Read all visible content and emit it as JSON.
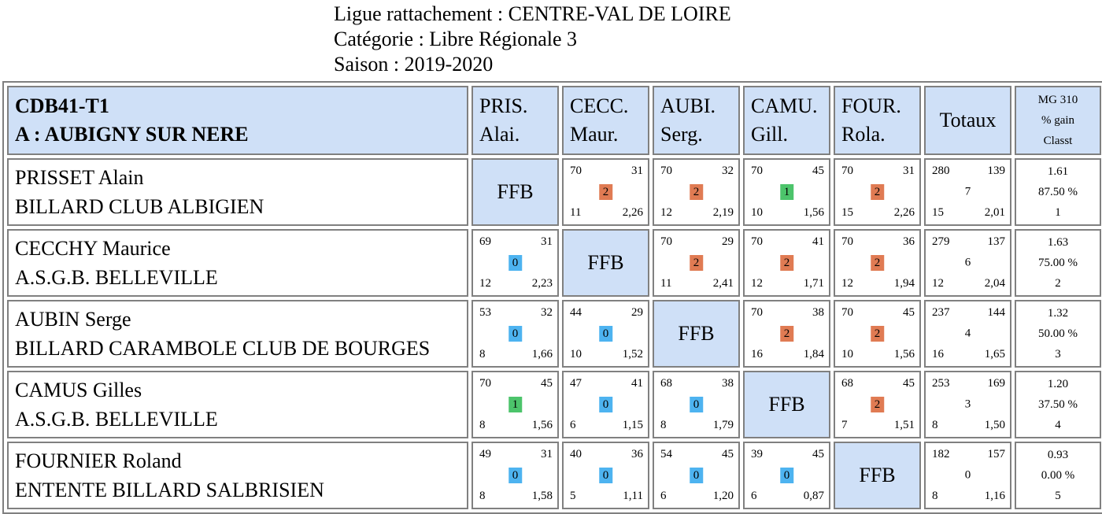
{
  "header": {
    "ligue": "Ligue rattachement : CENTRE-VAL DE LOIRE",
    "categorie": "Catégorie : Libre Régionale 3",
    "saison": "Saison : 2019-2020"
  },
  "table": {
    "title_line1": "CDB41-T1",
    "title_line2": "A : AUBIGNY SUR NERE",
    "col_heads": [
      {
        "l1": "PRIS.",
        "l2": "Alai."
      },
      {
        "l1": "CECC.",
        "l2": "Maur."
      },
      {
        "l1": "AUBI.",
        "l2": "Serg."
      },
      {
        "l1": "CAMU.",
        "l2": "Gill."
      },
      {
        "l1": "FOUR.",
        "l2": "Rola."
      }
    ],
    "totaux_label": "Totaux",
    "mg_head": {
      "l1": "MG 310",
      "l2": "% gain",
      "l3": "Classt"
    },
    "ffb_label": "FFB",
    "rows": [
      {
        "name": "PRISSET Alain",
        "club": "BILLARD CLUB ALBIGIEN",
        "cells": [
          null,
          {
            "tl": "70",
            "tr": "31",
            "pts": "2",
            "bl": "11",
            "br": "2,26"
          },
          {
            "tl": "70",
            "tr": "32",
            "pts": "2",
            "bl": "12",
            "br": "2,19"
          },
          {
            "tl": "70",
            "tr": "45",
            "pts": "1",
            "bl": "10",
            "br": "1,56"
          },
          {
            "tl": "70",
            "tr": "31",
            "pts": "2",
            "bl": "15",
            "br": "2,26"
          }
        ],
        "totals": {
          "tl": "280",
          "tr": "139",
          "mid": "7",
          "bl": "15",
          "br": "2,01"
        },
        "mg": {
          "avg": "1.61",
          "pct": "87.50 %",
          "rank": "1"
        }
      },
      {
        "name": "CECCHY Maurice",
        "club": "A.S.G.B. BELLEVILLE",
        "cells": [
          {
            "tl": "69",
            "tr": "31",
            "pts": "0",
            "bl": "12",
            "br": "2,23"
          },
          null,
          {
            "tl": "70",
            "tr": "29",
            "pts": "2",
            "bl": "11",
            "br": "2,41"
          },
          {
            "tl": "70",
            "tr": "41",
            "pts": "2",
            "bl": "12",
            "br": "1,71"
          },
          {
            "tl": "70",
            "tr": "36",
            "pts": "2",
            "bl": "12",
            "br": "1,94"
          }
        ],
        "totals": {
          "tl": "279",
          "tr": "137",
          "mid": "6",
          "bl": "12",
          "br": "2,04"
        },
        "mg": {
          "avg": "1.63",
          "pct": "75.00 %",
          "rank": "2"
        }
      },
      {
        "name": "AUBIN Serge",
        "club": "BILLARD CARAMBOLE CLUB DE BOURGES",
        "cells": [
          {
            "tl": "53",
            "tr": "32",
            "pts": "0",
            "bl": "8",
            "br": "1,66"
          },
          {
            "tl": "44",
            "tr": "29",
            "pts": "0",
            "bl": "10",
            "br": "1,52"
          },
          null,
          {
            "tl": "70",
            "tr": "38",
            "pts": "2",
            "bl": "16",
            "br": "1,84"
          },
          {
            "tl": "70",
            "tr": "45",
            "pts": "2",
            "bl": "10",
            "br": "1,56"
          }
        ],
        "totals": {
          "tl": "237",
          "tr": "144",
          "mid": "4",
          "bl": "16",
          "br": "1,65"
        },
        "mg": {
          "avg": "1.32",
          "pct": "50.00 %",
          "rank": "3"
        }
      },
      {
        "name": "CAMUS Gilles",
        "club": "A.S.G.B. BELLEVILLE",
        "cells": [
          {
            "tl": "70",
            "tr": "45",
            "pts": "1",
            "bl": "8",
            "br": "1,56"
          },
          {
            "tl": "47",
            "tr": "41",
            "pts": "0",
            "bl": "6",
            "br": "1,15"
          },
          {
            "tl": "68",
            "tr": "38",
            "pts": "0",
            "bl": "8",
            "br": "1,79"
          },
          null,
          {
            "tl": "68",
            "tr": "45",
            "pts": "2",
            "bl": "7",
            "br": "1,51"
          }
        ],
        "totals": {
          "tl": "253",
          "tr": "169",
          "mid": "3",
          "bl": "8",
          "br": "1,50"
        },
        "mg": {
          "avg": "1.20",
          "pct": "37.50 %",
          "rank": "4"
        }
      },
      {
        "name": "FOURNIER Roland",
        "club": "ENTENTE BILLARD SALBRISIEN",
        "cells": [
          {
            "tl": "49",
            "tr": "31",
            "pts": "0",
            "bl": "8",
            "br": "1,58"
          },
          {
            "tl": "40",
            "tr": "36",
            "pts": "0",
            "bl": "5",
            "br": "1,11"
          },
          {
            "tl": "54",
            "tr": "45",
            "pts": "0",
            "bl": "6",
            "br": "1,20"
          },
          {
            "tl": "39",
            "tr": "45",
            "pts": "0",
            "bl": "6",
            "br": "0,87"
          },
          null
        ],
        "totals": {
          "tl": "182",
          "tr": "157",
          "mid": "0",
          "bl": "8",
          "br": "1,16"
        },
        "mg": {
          "avg": "0.93",
          "pct": "0.00 %",
          "rank": "5"
        }
      }
    ]
  },
  "colors": {
    "header_bg": "#cfe0f7",
    "win": "#e07b53",
    "draw": "#4cc46b",
    "loss": "#4db3f0",
    "border": "#808080"
  }
}
